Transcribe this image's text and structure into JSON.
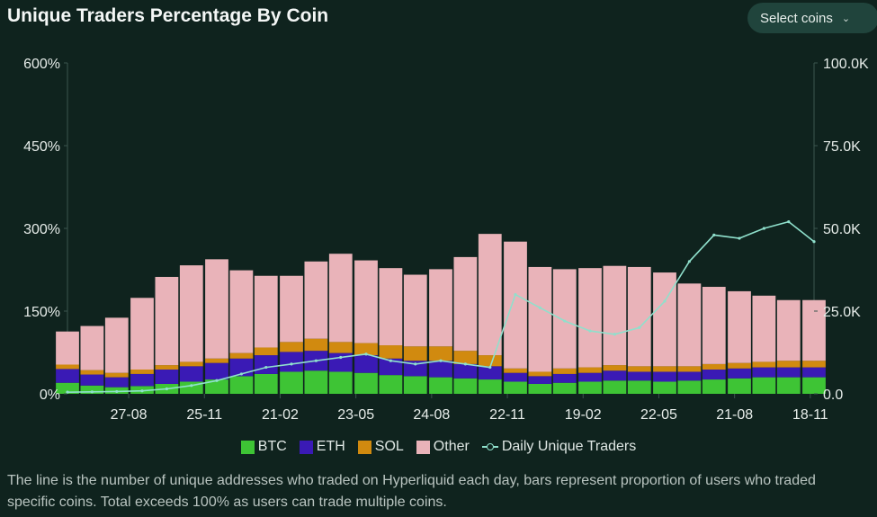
{
  "header": {
    "title": "Unique Traders Percentage By Coin",
    "select_label": "Select coins",
    "select_icon": "chevron-down-icon"
  },
  "legend": {
    "items": [
      {
        "label": "BTC",
        "color": "#3ec435"
      },
      {
        "label": "ETH",
        "color": "#3a1ab5"
      },
      {
        "label": "SOL",
        "color": "#d18a0f"
      },
      {
        "label": "Other",
        "color": "#e9b3b9"
      },
      {
        "label": "Daily Unique Traders",
        "color": "#8fe0cc"
      }
    ]
  },
  "caption": "The line is the number of unique addresses who traded on Hyperliquid each day, bars represent proportion of users who traded specific coins. Total exceeds 100% as users can trade multiple coins.",
  "chart_data": {
    "type": "bar",
    "stacked": true,
    "x_ticks": [
      "27-08",
      "25-11",
      "21-02",
      "23-05",
      "24-08",
      "22-11",
      "19-02",
      "22-05",
      "21-08",
      "18-11"
    ],
    "y_left": {
      "ticks": [
        "0%",
        "150%",
        "300%",
        "450%",
        "600%"
      ],
      "range": [
        0,
        600
      ],
      "unit": "%"
    },
    "y_right": {
      "ticks": [
        "0.0",
        "25.0K",
        "50.0K",
        "75.0K",
        "100.0K"
      ],
      "range": [
        0,
        100000
      ]
    },
    "grid": false,
    "legend_position": "bottom",
    "x_positions": [
      0,
      0.033,
      0.066,
      0.1,
      0.133,
      0.166,
      0.2,
      0.233,
      0.266,
      0.3,
      0.333,
      0.366,
      0.4,
      0.433,
      0.466,
      0.5,
      0.533,
      0.566,
      0.6,
      0.633,
      0.666,
      0.7,
      0.733,
      0.766,
      0.8,
      0.833,
      0.866,
      0.9,
      0.933,
      0.966,
      1.0
    ],
    "series": [
      {
        "name": "BTC",
        "values": [
          20,
          15,
          12,
          14,
          18,
          22,
          26,
          32,
          36,
          40,
          42,
          40,
          38,
          34,
          32,
          30,
          28,
          26,
          22,
          18,
          20,
          22,
          24,
          24,
          22,
          24,
          26,
          28,
          30,
          30,
          30
        ]
      },
      {
        "name": "ETH",
        "values": [
          25,
          20,
          18,
          22,
          26,
          28,
          30,
          32,
          34,
          36,
          36,
          34,
          32,
          30,
          28,
          30,
          26,
          24,
          16,
          14,
          16,
          16,
          18,
          16,
          18,
          16,
          18,
          18,
          18,
          18,
          18
        ]
      },
      {
        "name": "SOL",
        "values": [
          8,
          8,
          8,
          8,
          8,
          8,
          8,
          10,
          14,
          18,
          22,
          20,
          22,
          24,
          26,
          26,
          24,
          20,
          8,
          8,
          10,
          10,
          10,
          10,
          10,
          10,
          10,
          10,
          10,
          12,
          12
        ]
      },
      {
        "name": "Other",
        "values": [
          60,
          80,
          100,
          130,
          160,
          175,
          180,
          150,
          130,
          120,
          140,
          160,
          150,
          140,
          130,
          140,
          170,
          220,
          230,
          190,
          180,
          180,
          180,
          180,
          170,
          150,
          140,
          130,
          120,
          110,
          110
        ]
      },
      {
        "name": "Daily Unique Traders",
        "axis": "right",
        "type": "line",
        "values": [
          500,
          600,
          700,
          900,
          1500,
          2500,
          4000,
          6000,
          8000,
          9000,
          10000,
          11000,
          12000,
          10000,
          9000,
          10000,
          9000,
          8000,
          30000,
          26000,
          22000,
          19000,
          18000,
          20000,
          28000,
          40000,
          48000,
          47000,
          50000,
          52000,
          46000
        ]
      }
    ]
  }
}
